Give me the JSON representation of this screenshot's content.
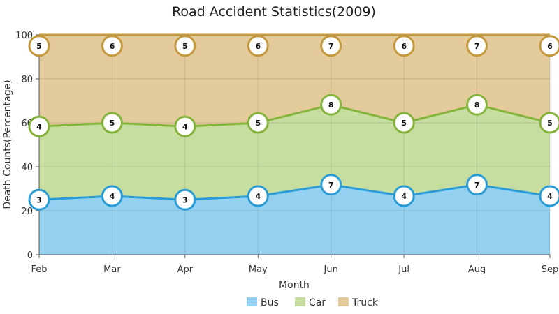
{
  "chart_data": {
    "type": "area",
    "stacking": "percent",
    "title": "Road Accident Statistics(2009)",
    "xlabel": "Month",
    "ylabel": "Death Counts(Percentage)",
    "categories": [
      "Feb",
      "Mar",
      "Apr",
      "May",
      "Jun",
      "Jul",
      "Aug",
      "Sep"
    ],
    "ylim": [
      0,
      100
    ],
    "yticks": [
      0,
      20,
      40,
      60,
      80,
      100
    ],
    "grid": true,
    "legend_position": "bottom-center",
    "data_labels": true,
    "series": [
      {
        "name": "Bus",
        "values": [
          3,
          4,
          3,
          4,
          7,
          4,
          7,
          4
        ],
        "fill": "#94d1f0",
        "line": "#2a9dd8"
      },
      {
        "name": "Car",
        "values": [
          4,
          5,
          4,
          5,
          8,
          5,
          8,
          5
        ],
        "fill": "#c6dea0",
        "line": "#84b43c"
      },
      {
        "name": "Truck",
        "values": [
          5,
          6,
          5,
          6,
          7,
          6,
          7,
          6
        ],
        "fill": "#e3cb9b",
        "line": "#c59a3e"
      }
    ]
  }
}
